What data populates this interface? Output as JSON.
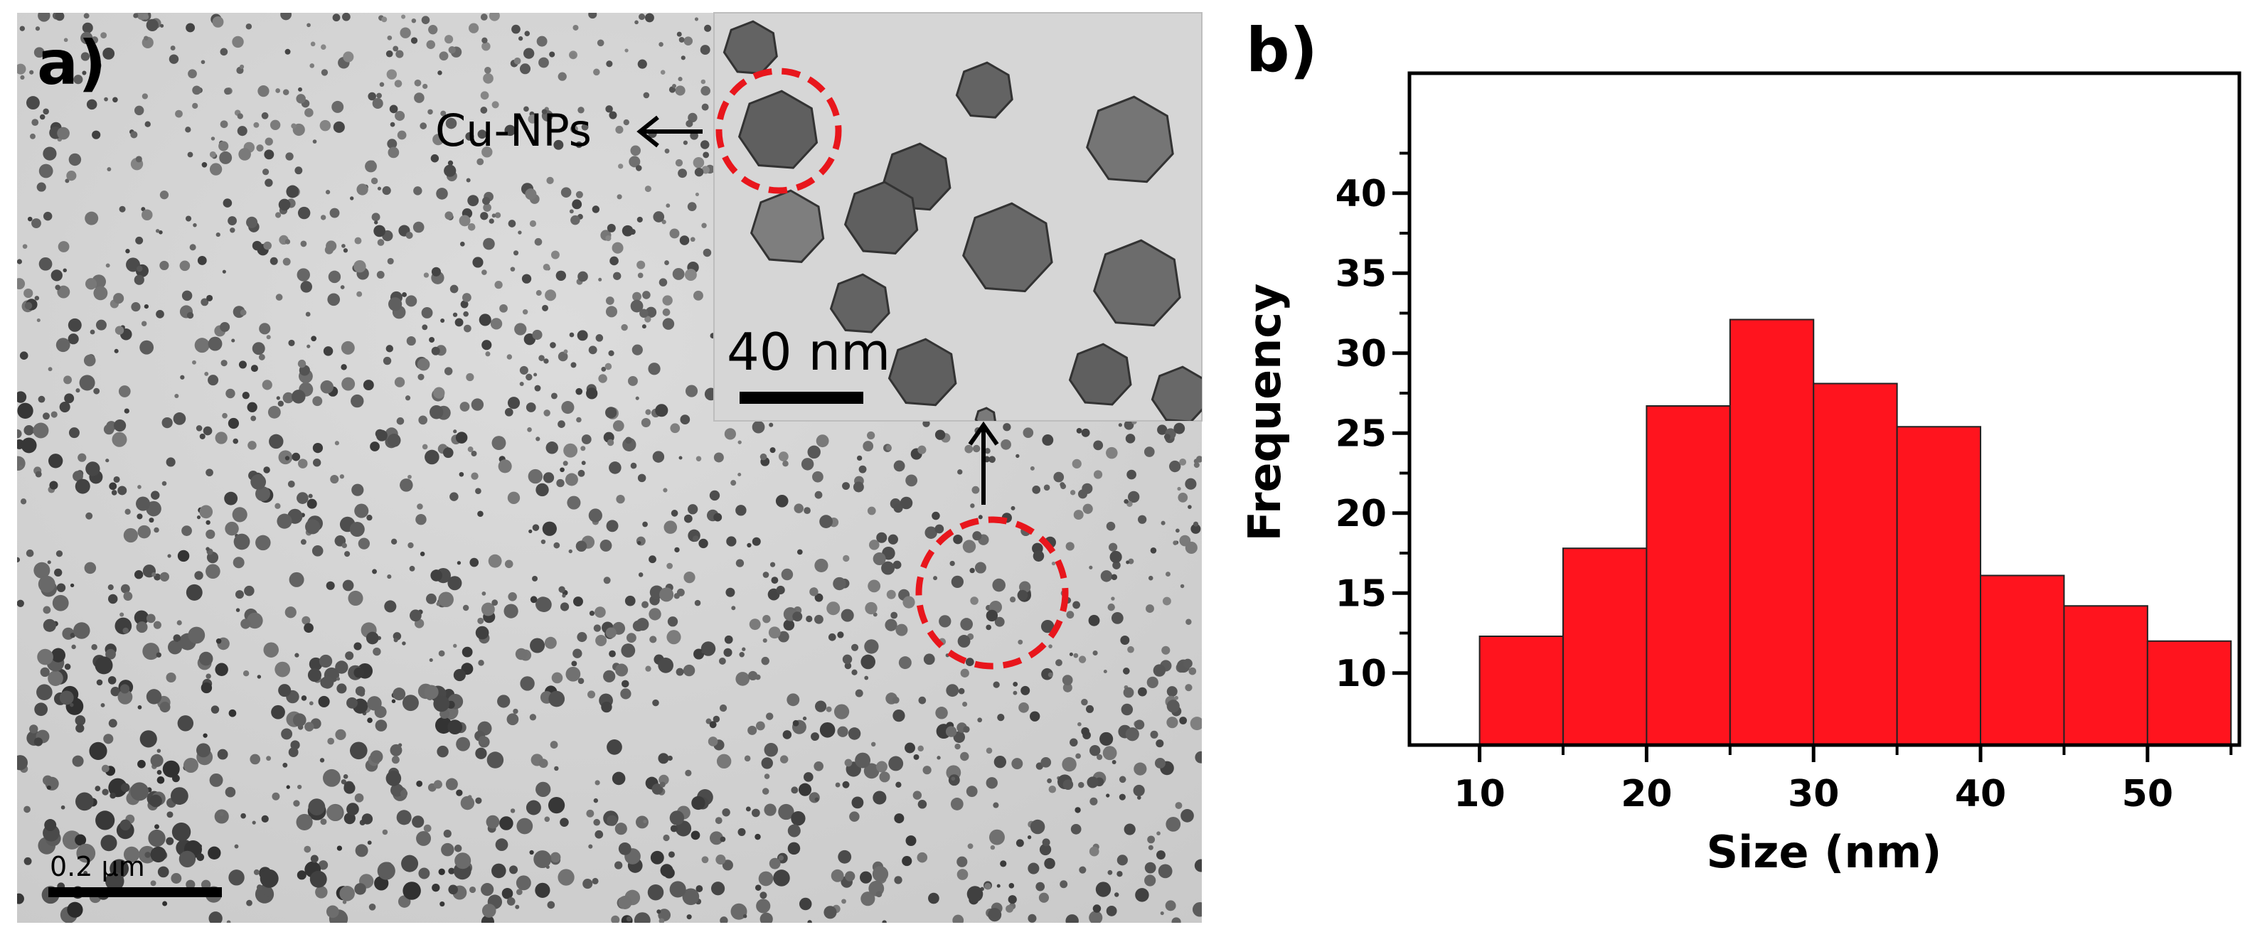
{
  "panel_a": {
    "label": "a)",
    "inset_annotation": "Cu-NPs",
    "inset_scale_bar": "40 nm",
    "main_scale_bar": "0.2 µm",
    "highlight_color": "#e8161c"
  },
  "panel_b": {
    "label": "b)"
  },
  "chart_data": {
    "type": "bar",
    "title": "",
    "xlabel": "Size (nm)",
    "ylabel": "Frequency",
    "bin_width": 5,
    "bin_starts": [
      10,
      15,
      20,
      25,
      30,
      35,
      40,
      45,
      50
    ],
    "values": [
      12.3,
      17.8,
      26.7,
      32.1,
      28.1,
      25.4,
      16.1,
      14.2,
      12.0
    ],
    "x_ticks": [
      10,
      20,
      30,
      40,
      50
    ],
    "y_ticks": [
      10,
      15,
      20,
      25,
      30,
      35,
      40
    ],
    "xlim": [
      5.8,
      55.5
    ],
    "ylim": [
      5.5,
      47.5
    ],
    "grid": false,
    "bar_color": "#ff141e"
  }
}
